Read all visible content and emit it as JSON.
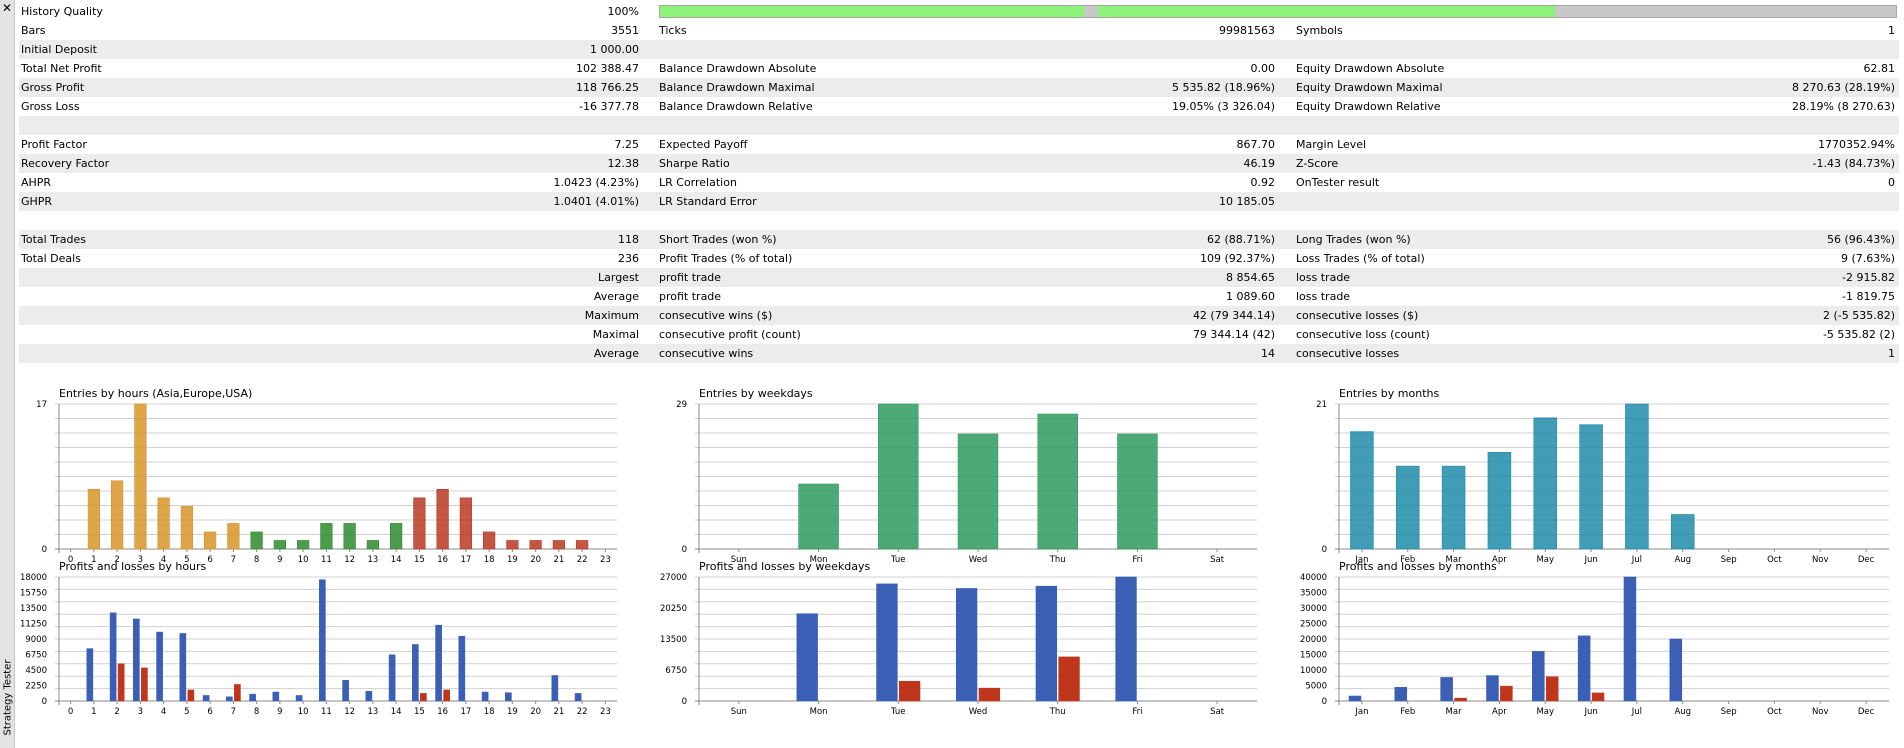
{
  "sidebar": {
    "close_glyph": "✕",
    "label": "Strategy Tester"
  },
  "history_quality": {
    "label": "History Quality",
    "value": "100%",
    "bar_fill_fraction": 1.0
  },
  "stats_rows": [
    {
      "c1_label": "Bars",
      "c1_value": "3551",
      "c2_label": "Ticks",
      "c2_value": "99981563",
      "c3_label": "Symbols",
      "c3_value": "1"
    },
    {
      "c1_label": "Initial Deposit",
      "c1_value": "1 000.00",
      "c2_label": "",
      "c2_value": "",
      "c3_label": "",
      "c3_value": ""
    },
    {
      "c1_label": "Total Net Profit",
      "c1_value": "102 388.47",
      "c2_label": "Balance Drawdown Absolute",
      "c2_value": "0.00",
      "c3_label": "Equity Drawdown Absolute",
      "c3_value": "62.81"
    },
    {
      "c1_label": "Gross Profit",
      "c1_value": "118 766.25",
      "c2_label": "Balance Drawdown Maximal",
      "c2_value": "5 535.82 (18.96%)",
      "c3_label": "Equity Drawdown Maximal",
      "c3_value": "8 270.63 (28.19%)"
    },
    {
      "c1_label": "Gross Loss",
      "c1_value": "-16 377.78",
      "c2_label": "Balance Drawdown Relative",
      "c2_value": "19.05% (3 326.04)",
      "c3_label": "Equity Drawdown Relative",
      "c3_value": "28.19% (8 270.63)"
    },
    {
      "c1_label": "",
      "c1_value": "",
      "c2_label": "",
      "c2_value": "",
      "c3_label": "",
      "c3_value": ""
    },
    {
      "c1_label": "Profit Factor",
      "c1_value": "7.25",
      "c2_label": "Expected Payoff",
      "c2_value": "867.70",
      "c3_label": "Margin Level",
      "c3_value": "1770352.94%"
    },
    {
      "c1_label": "Recovery Factor",
      "c1_value": "12.38",
      "c2_label": "Sharpe Ratio",
      "c2_value": "46.19",
      "c3_label": "Z-Score",
      "c3_value": "-1.43 (84.73%)"
    },
    {
      "c1_label": "AHPR",
      "c1_value": "1.0423 (4.23%)",
      "c2_label": "LR Correlation",
      "c2_value": "0.92",
      "c3_label": "OnTester result",
      "c3_value": "0"
    },
    {
      "c1_label": "GHPR",
      "c1_value": "1.0401 (4.01%)",
      "c2_label": "LR Standard Error",
      "c2_value": "10 185.05",
      "c3_label": "",
      "c3_value": ""
    },
    {
      "c1_label": "",
      "c1_value": "",
      "c2_label": "",
      "c2_value": "",
      "c3_label": "",
      "c3_value": ""
    },
    {
      "c1_label": "Total Trades",
      "c1_value": "118",
      "c2_label": "Short Trades (won %)",
      "c2_value": "62 (88.71%)",
      "c3_label": "Long Trades (won %)",
      "c3_value": "56 (96.43%)"
    },
    {
      "c1_label": "Total Deals",
      "c1_value": "236",
      "c2_label": "Profit Trades (% of total)",
      "c2_value": "109 (92.37%)",
      "c3_label": "Loss Trades (% of total)",
      "c3_value": "9 (7.63%)"
    },
    {
      "c1_label": "Largest",
      "c1_value": "",
      "c1_right": true,
      "c2_label": "profit trade",
      "c2_value": "8 854.65",
      "c3_label": "loss trade",
      "c3_value": "-2 915.82"
    },
    {
      "c1_label": "Average",
      "c1_value": "",
      "c1_right": true,
      "c2_label": "profit trade",
      "c2_value": "1 089.60",
      "c3_label": "loss trade",
      "c3_value": "-1 819.75"
    },
    {
      "c1_label": "Maximum",
      "c1_value": "",
      "c1_right": true,
      "c2_label": "consecutive wins ($)",
      "c2_value": "42 (79 344.14)",
      "c3_label": "consecutive losses ($)",
      "c3_value": "2 (-5 535.82)"
    },
    {
      "c1_label": "Maximal",
      "c1_value": "",
      "c1_right": true,
      "c2_label": "consecutive profit (count)",
      "c2_value": "79 344.14 (42)",
      "c3_label": "consecutive loss (count)",
      "c3_value": "-5 535.82 (2)"
    },
    {
      "c1_label": "Average",
      "c1_value": "",
      "c1_right": true,
      "c2_label": "consecutive wins",
      "c2_value": "14",
      "c3_label": "consecutive losses",
      "c3_value": "1"
    }
  ],
  "chart_data": [
    {
      "type": "bar",
      "title": "Entries by hours (Asia,Europe,USA)",
      "categories": [
        "0",
        "1",
        "2",
        "3",
        "4",
        "5",
        "6",
        "7",
        "8",
        "9",
        "10",
        "11",
        "12",
        "13",
        "14",
        "15",
        "16",
        "17",
        "18",
        "19",
        "20",
        "21",
        "22",
        "23"
      ],
      "values": [
        0,
        7,
        8,
        17,
        6,
        5,
        2,
        3,
        2,
        1,
        1,
        3,
        3,
        1,
        3,
        6,
        7,
        6,
        2,
        1,
        1,
        1,
        1,
        0
      ],
      "bar_colors": [
        "#d89428",
        "#d89428",
        "#d89428",
        "#d89428",
        "#d89428",
        "#d89428",
        "#d89428",
        "#d89428",
        "#2e8a2e",
        "#2e8a2e",
        "#2e8a2e",
        "#2e8a2e",
        "#2e8a2e",
        "#2e8a2e",
        "#2e8a2e",
        "#b83a22",
        "#b83a22",
        "#b83a22",
        "#b83a22",
        "#b83a22",
        "#b83a22",
        "#b83a22",
        "#b83a22",
        "#b83a22"
      ],
      "ylim": [
        0,
        17
      ],
      "ytick_labels": [
        "0",
        "17"
      ],
      "grid": true
    },
    {
      "type": "bar",
      "title": "Entries by weekdays",
      "categories": [
        "Sun",
        "Mon",
        "Tue",
        "Wed",
        "Thu",
        "Fri",
        "Sat"
      ],
      "values": [
        0,
        13,
        29,
        23,
        27,
        23,
        0
      ],
      "bar_colors": [
        "#2e9a5e"
      ],
      "ylim": [
        0,
        29
      ],
      "ytick_labels": [
        "0",
        "29"
      ],
      "grid": true
    },
    {
      "type": "bar",
      "title": "Entries by months",
      "categories": [
        "Jan",
        "Feb",
        "Mar",
        "Apr",
        "May",
        "Jun",
        "Jul",
        "Aug",
        "Sep",
        "Oct",
        "Nov",
        "Dec"
      ],
      "values": [
        17,
        12,
        12,
        14,
        19,
        18,
        21,
        5,
        0,
        0,
        0,
        0
      ],
      "bar_colors": [
        "#1e8ca8"
      ],
      "ylim": [
        0,
        21
      ],
      "ytick_labels": [
        "0",
        "21"
      ],
      "grid": true
    },
    {
      "type": "bar",
      "title": "Profits and losses by hours",
      "categories": [
        "0",
        "1",
        "2",
        "3",
        "4",
        "5",
        "6",
        "7",
        "8",
        "9",
        "10",
        "11",
        "12",
        "13",
        "14",
        "15",
        "16",
        "17",
        "18",
        "19",
        "20",
        "21",
        "22",
        "23"
      ],
      "series": [
        {
          "color": "#3b5fb5",
          "values": [
            0,
            7600,
            12800,
            11900,
            10000,
            9800,
            800,
            600,
            1000,
            1300,
            800,
            17600,
            3000,
            1400,
            6700,
            8200,
            11000,
            9400,
            1300,
            1200,
            0,
            3700,
            1100,
            0
          ]
        },
        {
          "color": "#c0361c",
          "values": [
            0,
            0,
            5400,
            4800,
            0,
            1600,
            0,
            2400,
            0,
            0,
            0,
            0,
            0,
            0,
            0,
            1100,
            1600,
            0,
            0,
            0,
            0,
            0,
            0,
            0
          ]
        }
      ],
      "ylim": [
        0,
        18000
      ],
      "ytick_labels": [
        "0",
        "2250",
        "4500",
        "6750",
        "9000",
        "11250",
        "13500",
        "15750",
        "18000"
      ],
      "grid": true
    },
    {
      "type": "bar",
      "title": "Profits and losses by weekdays",
      "categories": [
        "Sun",
        "Mon",
        "Tue",
        "Wed",
        "Thu",
        "Fri",
        "Sat"
      ],
      "series": [
        {
          "color": "#3b5fb5",
          "values": [
            0,
            19000,
            25500,
            24500,
            25000,
            27000,
            0
          ]
        },
        {
          "color": "#c0361c",
          "values": [
            0,
            0,
            4300,
            2800,
            9600,
            0,
            0
          ]
        }
      ],
      "ylim": [
        0,
        27000
      ],
      "ytick_labels": [
        "0",
        "6750",
        "13500",
        "20250",
        "27000"
      ],
      "grid": true
    },
    {
      "type": "bar",
      "title": "Profits and losses by months",
      "categories": [
        "Jan",
        "Feb",
        "Mar",
        "Apr",
        "May",
        "Jun",
        "Jul",
        "Aug",
        "Sep",
        "Oct",
        "Nov",
        "Dec"
      ],
      "series": [
        {
          "color": "#3b5fb5",
          "values": [
            1600,
            4400,
            7600,
            8200,
            16000,
            21000,
            40000,
            20000,
            0,
            0,
            0,
            0
          ]
        },
        {
          "color": "#c0361c",
          "values": [
            0,
            0,
            900,
            4800,
            7800,
            2600,
            0,
            0,
            0,
            0,
            0,
            0
          ]
        }
      ],
      "ylim": [
        0,
        40000
      ],
      "ytick_labels": [
        "0",
        "5000",
        "10000",
        "15000",
        "20000",
        "25000",
        "30000",
        "35000",
        "40000"
      ],
      "grid": true
    }
  ]
}
